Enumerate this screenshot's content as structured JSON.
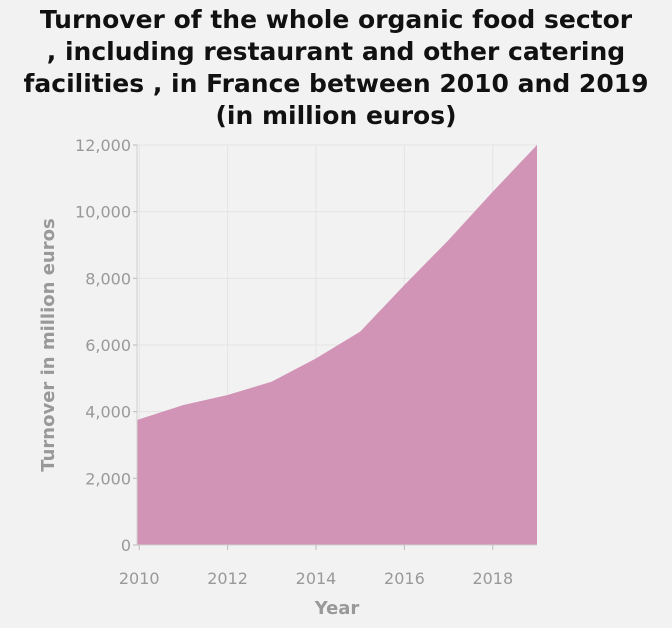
{
  "chart_data": {
    "type": "area",
    "title_lines": [
      "Turnover of the whole organic food sector",
      ", including restaurant and other catering",
      "facilities , in France between 2010 and 2019",
      "(in million euros)"
    ],
    "xlabel": "Year",
    "ylabel": "Turnover in million euros",
    "x": [
      2009.95,
      2011,
      2012,
      2013,
      2014,
      2015,
      2016,
      2017,
      2018,
      2019
    ],
    "values": [
      3750,
      4200,
      4500,
      4900,
      5600,
      6400,
      7800,
      9150,
      10600,
      12000
    ],
    "xlim": [
      2009.95,
      2019
    ],
    "ylim": [
      0,
      12000
    ],
    "x_ticks": [
      2010,
      2012,
      2014,
      2016,
      2018
    ],
    "x_tick_labels": [
      "2010",
      "2012",
      "2014",
      "2016",
      "2018"
    ],
    "y_ticks": [
      0,
      2000,
      4000,
      6000,
      8000,
      10000,
      12000
    ],
    "y_tick_labels": [
      "0",
      "2,000",
      "4,000",
      "6,000",
      "8,000",
      "10,000",
      "12,000"
    ],
    "grid": true,
    "colors": {
      "fill": "#d193b6",
      "background": "#f2f2f2",
      "grid": "#e4e4e4",
      "text": "#999999",
      "title": "#111111"
    }
  }
}
